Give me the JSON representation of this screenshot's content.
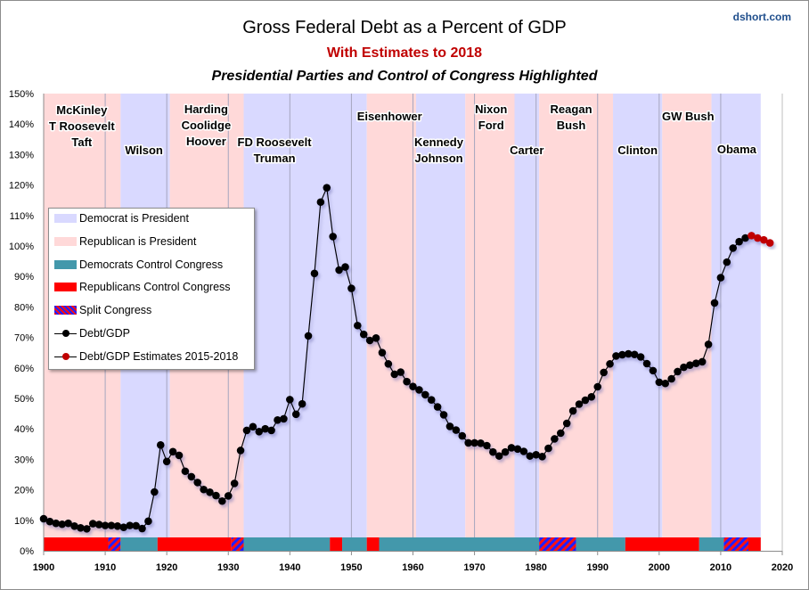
{
  "brand": "dshort.com",
  "chart_data": {
    "type": "line",
    "title": "Gross Federal Debt as a Percent of GDP",
    "subtitle": "With Estimates to 2018",
    "subtitle2": "Presidential Parties and Control of Congress Highlighted",
    "xlabel": "",
    "ylabel": "",
    "xlim": [
      1900,
      2020
    ],
    "ylim": [
      0,
      150
    ],
    "x_ticks": [
      "1900",
      "1910",
      "1920",
      "1930",
      "1940",
      "1950",
      "1960",
      "1970",
      "1980",
      "1990",
      "2000",
      "2010",
      "2020"
    ],
    "y_ticks": [
      "0%",
      "10%",
      "20%",
      "30%",
      "40%",
      "50%",
      "60%",
      "70%",
      "80%",
      "90%",
      "100%",
      "110%",
      "120%",
      "130%",
      "140%",
      "150%"
    ],
    "grid": "vertical lines at presidential term changes",
    "legend_position": "left-middle",
    "legend": [
      {
        "label": "Democrat is President",
        "kind": "band",
        "color": "#d9d9ff"
      },
      {
        "label": "Republican is President",
        "kind": "band",
        "color": "#ffd9d9"
      },
      {
        "label": "Democrats Control Congress",
        "kind": "band",
        "color": "#4398ab"
      },
      {
        "label": "Republicans Control Congress",
        "kind": "band",
        "color": "#ff0000"
      },
      {
        "label": "Split Congress",
        "kind": "hatch",
        "color": "#2020ff"
      },
      {
        "label": "Debt/GDP",
        "kind": "line",
        "color": "#000000"
      },
      {
        "label": "Debt/GDP Estimates 2015-2018",
        "kind": "line",
        "color": "#c00000"
      }
    ],
    "presidencies": [
      {
        "party": "R",
        "start": 1900,
        "end": 1913,
        "label": [
          "McKinley",
          "T Roosevelt",
          "Taft"
        ]
      },
      {
        "party": "D",
        "start": 1913,
        "end": 1921,
        "label": [
          "Wilson"
        ]
      },
      {
        "party": "R",
        "start": 1921,
        "end": 1933,
        "label": [
          "Harding",
          "Coolidge",
          "Hoover"
        ]
      },
      {
        "party": "D",
        "start": 1933,
        "end": 1953,
        "label": [
          "FD Roosevelt",
          "Truman"
        ]
      },
      {
        "party": "R",
        "start": 1953,
        "end": 1961,
        "label": [
          "Eisenhower"
        ]
      },
      {
        "party": "D",
        "start": 1961,
        "end": 1969,
        "label": [
          "Kennedy",
          "Johnson"
        ]
      },
      {
        "party": "R",
        "start": 1969,
        "end": 1977,
        "label": [
          "Nixon",
          "Ford"
        ]
      },
      {
        "party": "D",
        "start": 1977,
        "end": 1981,
        "label": [
          "Carter"
        ]
      },
      {
        "party": "R",
        "start": 1981,
        "end": 1993,
        "label": [
          "Reagan",
          "Bush"
        ]
      },
      {
        "party": "D",
        "start": 1993,
        "end": 2001,
        "label": [
          "Clinton"
        ]
      },
      {
        "party": "R",
        "start": 2001,
        "end": 2009,
        "label": [
          "GW Bush"
        ]
      },
      {
        "party": "D",
        "start": 2009,
        "end": 2017,
        "label": [
          "Obama"
        ]
      }
    ],
    "term_lines": [
      1910,
      1920,
      1930,
      1940,
      1950,
      1960,
      1970,
      1980,
      1990,
      2000,
      2010
    ],
    "congress": [
      {
        "control": "R",
        "start": 1900,
        "end": 1911
      },
      {
        "control": "S",
        "start": 1911,
        "end": 1913
      },
      {
        "control": "D",
        "start": 1913,
        "end": 1919
      },
      {
        "control": "R",
        "start": 1919,
        "end": 1931
      },
      {
        "control": "S",
        "start": 1931,
        "end": 1933
      },
      {
        "control": "D",
        "start": 1933,
        "end": 1947
      },
      {
        "control": "R",
        "start": 1947,
        "end": 1949
      },
      {
        "control": "D",
        "start": 1949,
        "end": 1953
      },
      {
        "control": "R",
        "start": 1953,
        "end": 1955
      },
      {
        "control": "D",
        "start": 1955,
        "end": 1981
      },
      {
        "control": "S",
        "start": 1981,
        "end": 1987
      },
      {
        "control": "D",
        "start": 1987,
        "end": 1995
      },
      {
        "control": "R",
        "start": 1995,
        "end": 2007
      },
      {
        "control": "D",
        "start": 2007,
        "end": 2011
      },
      {
        "control": "S",
        "start": 2011,
        "end": 2015
      },
      {
        "control": "R",
        "start": 2015,
        "end": 2017
      }
    ],
    "series": [
      {
        "name": "Debt/GDP",
        "color": "#000000",
        "x": [
          1900,
          1901,
          1902,
          1903,
          1904,
          1905,
          1906,
          1907,
          1908,
          1909,
          1910,
          1911,
          1912,
          1913,
          1914,
          1915,
          1916,
          1917,
          1918,
          1919,
          1920,
          1921,
          1922,
          1923,
          1924,
          1925,
          1926,
          1927,
          1928,
          1929,
          1930,
          1931,
          1932,
          1933,
          1934,
          1935,
          1936,
          1937,
          1938,
          1939,
          1940,
          1941,
          1942,
          1943,
          1944,
          1945,
          1946,
          1947,
          1948,
          1949,
          1950,
          1951,
          1952,
          1953,
          1954,
          1955,
          1956,
          1957,
          1958,
          1959,
          1960,
          1961,
          1962,
          1963,
          1964,
          1965,
          1966,
          1967,
          1968,
          1969,
          1970,
          1971,
          1972,
          1973,
          1974,
          1975,
          1976,
          1977,
          1978,
          1979,
          1980,
          1981,
          1982,
          1983,
          1984,
          1985,
          1986,
          1987,
          1988,
          1989,
          1990,
          1991,
          1992,
          1993,
          1994,
          1995,
          1996,
          1997,
          1998,
          1999,
          2000,
          2001,
          2002,
          2003,
          2004,
          2005,
          2006,
          2007,
          2008,
          2009,
          2010,
          2011,
          2012,
          2013,
          2014
        ],
        "values": [
          10.5,
          9.6,
          9.0,
          8.7,
          9.0,
          8.1,
          7.5,
          7.2,
          8.9,
          8.6,
          8.3,
          8.3,
          8.1,
          7.7,
          8.3,
          8.2,
          7.3,
          9.7,
          19.3,
          34.7,
          29.3,
          32.5,
          31.3,
          26.1,
          24.3,
          22.4,
          20.1,
          19.2,
          18.1,
          16.3,
          18.0,
          22.1,
          32.9,
          39.5,
          40.7,
          39.1,
          40.0,
          39.5,
          42.9,
          43.3,
          49.6,
          44.8,
          48.2,
          70.5,
          91.0,
          114.4,
          119.1,
          103.1,
          92.1,
          93.1,
          86.1,
          73.9,
          71.0,
          69.0,
          69.8,
          65.0,
          61.3,
          57.9,
          58.6,
          55.5,
          53.9,
          52.8,
          51.2,
          49.5,
          47.2,
          44.6,
          40.8,
          39.6,
          37.7,
          35.4,
          35.4,
          35.3,
          34.5,
          32.4,
          31.1,
          32.4,
          33.8,
          33.4,
          32.6,
          31.1,
          31.5,
          30.9,
          33.6,
          36.7,
          38.6,
          41.8,
          45.9,
          48.1,
          49.4,
          50.5,
          53.8,
          58.5,
          61.3,
          63.9,
          64.3,
          64.6,
          64.4,
          63.6,
          61.4,
          59.1,
          55.3,
          54.9,
          56.4,
          58.8,
          60.2,
          60.9,
          61.5,
          62.0,
          67.7,
          81.3,
          89.6,
          94.7,
          99.3,
          101.4,
          102.6
        ]
      },
      {
        "name": "Debt/GDP Estimates 2015-2018",
        "color": "#c00000",
        "x": [
          2015,
          2016,
          2017,
          2018
        ],
        "values": [
          103.4,
          102.6,
          102.0,
          101.0
        ]
      }
    ]
  }
}
